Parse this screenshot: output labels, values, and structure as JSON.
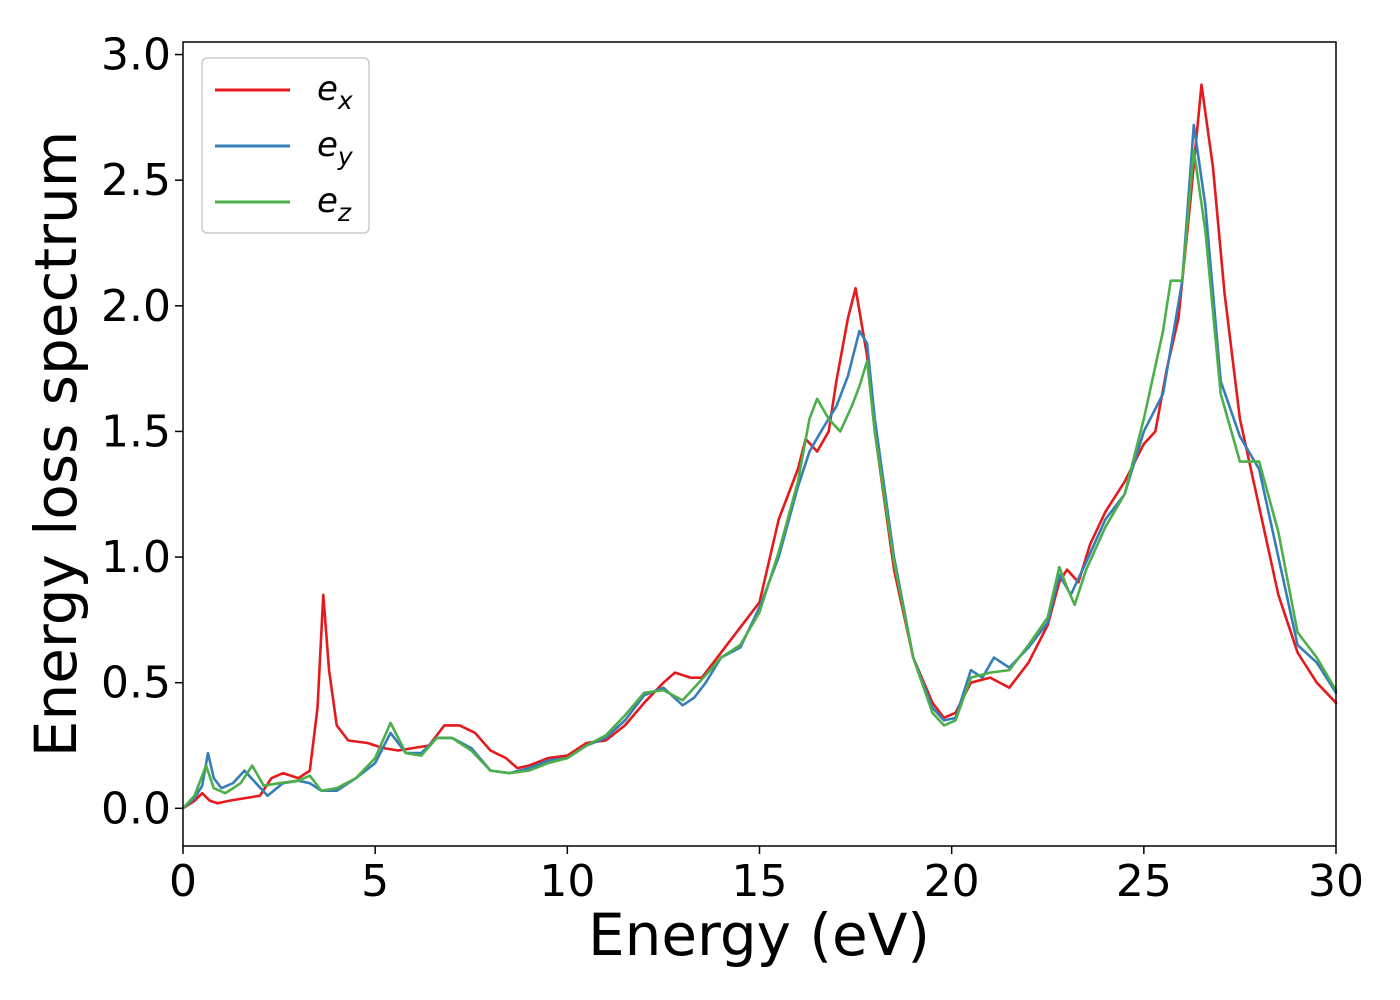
{
  "chart_data": {
    "type": "line",
    "title": "",
    "xlabel": "Energy (eV)",
    "ylabel": "Energy loss spectrum",
    "xlim": [
      0,
      30
    ],
    "ylim": [
      -0.15,
      3.05
    ],
    "xticks": [
      0,
      5,
      10,
      15,
      20,
      25,
      30
    ],
    "xtick_labels": [
      "0",
      "5",
      "10",
      "15",
      "20",
      "25",
      "30"
    ],
    "yticks": [
      0.0,
      0.5,
      1.0,
      1.5,
      2.0,
      2.5,
      3.0
    ],
    "ytick_labels": [
      "0.0",
      "0.5",
      "1.0",
      "1.5",
      "2.0",
      "2.5",
      "3.0"
    ],
    "grid": false,
    "legend_position": "top-left",
    "series": [
      {
        "name": "e_x",
        "label_base": "e",
        "label_sub": "x",
        "color": "#e41a1c",
        "points": [
          [
            0,
            0
          ],
          [
            0.3,
            0.03
          ],
          [
            0.5,
            0.06
          ],
          [
            0.7,
            0.03
          ],
          [
            0.9,
            0.02
          ],
          [
            1.2,
            0.03
          ],
          [
            1.6,
            0.04
          ],
          [
            2.0,
            0.05
          ],
          [
            2.3,
            0.12
          ],
          [
            2.6,
            0.14
          ],
          [
            3.0,
            0.12
          ],
          [
            3.3,
            0.15
          ],
          [
            3.5,
            0.4
          ],
          [
            3.65,
            0.85
          ],
          [
            3.8,
            0.55
          ],
          [
            4.0,
            0.33
          ],
          [
            4.3,
            0.27
          ],
          [
            4.8,
            0.26
          ],
          [
            5.2,
            0.24
          ],
          [
            5.6,
            0.23
          ],
          [
            6.0,
            0.24
          ],
          [
            6.4,
            0.25
          ],
          [
            6.8,
            0.33
          ],
          [
            7.2,
            0.33
          ],
          [
            7.6,
            0.3
          ],
          [
            8.0,
            0.23
          ],
          [
            8.4,
            0.2
          ],
          [
            8.7,
            0.16
          ],
          [
            9.0,
            0.17
          ],
          [
            9.5,
            0.2
          ],
          [
            10.0,
            0.21
          ],
          [
            10.5,
            0.26
          ],
          [
            11.0,
            0.27
          ],
          [
            11.5,
            0.33
          ],
          [
            12.0,
            0.42
          ],
          [
            12.5,
            0.5
          ],
          [
            12.8,
            0.54
          ],
          [
            13.2,
            0.52
          ],
          [
            13.5,
            0.52
          ],
          [
            14.0,
            0.62
          ],
          [
            14.5,
            0.72
          ],
          [
            15.0,
            0.82
          ],
          [
            15.5,
            1.15
          ],
          [
            16.0,
            1.35
          ],
          [
            16.2,
            1.47
          ],
          [
            16.5,
            1.42
          ],
          [
            16.8,
            1.5
          ],
          [
            17.0,
            1.7
          ],
          [
            17.3,
            1.95
          ],
          [
            17.5,
            2.07
          ],
          [
            17.8,
            1.8
          ],
          [
            18.0,
            1.5
          ],
          [
            18.5,
            0.95
          ],
          [
            19.0,
            0.6
          ],
          [
            19.5,
            0.42
          ],
          [
            19.8,
            0.36
          ],
          [
            20.1,
            0.38
          ],
          [
            20.5,
            0.5
          ],
          [
            21.0,
            0.52
          ],
          [
            21.5,
            0.48
          ],
          [
            22.0,
            0.58
          ],
          [
            22.5,
            0.73
          ],
          [
            22.8,
            0.9
          ],
          [
            23.0,
            0.95
          ],
          [
            23.3,
            0.9
          ],
          [
            23.6,
            1.05
          ],
          [
            24.0,
            1.18
          ],
          [
            24.5,
            1.3
          ],
          [
            25.0,
            1.45
          ],
          [
            25.3,
            1.5
          ],
          [
            25.6,
            1.75
          ],
          [
            25.9,
            1.95
          ],
          [
            26.2,
            2.4
          ],
          [
            26.5,
            2.88
          ],
          [
            26.8,
            2.55
          ],
          [
            27.1,
            2.05
          ],
          [
            27.5,
            1.55
          ],
          [
            28.0,
            1.2
          ],
          [
            28.5,
            0.85
          ],
          [
            29.0,
            0.62
          ],
          [
            29.5,
            0.5
          ],
          [
            30.0,
            0.42
          ]
        ]
      },
      {
        "name": "e_y",
        "label_base": "e",
        "label_sub": "y",
        "color": "#377eb8",
        "points": [
          [
            0,
            0
          ],
          [
            0.3,
            0.04
          ],
          [
            0.5,
            0.09
          ],
          [
            0.65,
            0.22
          ],
          [
            0.8,
            0.12
          ],
          [
            1.0,
            0.08
          ],
          [
            1.3,
            0.1
          ],
          [
            1.6,
            0.15
          ],
          [
            1.9,
            0.1
          ],
          [
            2.2,
            0.05
          ],
          [
            2.6,
            0.1
          ],
          [
            3.0,
            0.11
          ],
          [
            3.3,
            0.1
          ],
          [
            3.6,
            0.07
          ],
          [
            4.0,
            0.07
          ],
          [
            4.5,
            0.12
          ],
          [
            5.0,
            0.18
          ],
          [
            5.4,
            0.3
          ],
          [
            5.8,
            0.22
          ],
          [
            6.2,
            0.22
          ],
          [
            6.6,
            0.28
          ],
          [
            7.0,
            0.28
          ],
          [
            7.5,
            0.24
          ],
          [
            8.0,
            0.15
          ],
          [
            8.5,
            0.14
          ],
          [
            9.0,
            0.16
          ],
          [
            9.5,
            0.19
          ],
          [
            10.0,
            0.2
          ],
          [
            10.5,
            0.25
          ],
          [
            11.0,
            0.28
          ],
          [
            11.5,
            0.35
          ],
          [
            12.0,
            0.45
          ],
          [
            12.5,
            0.48
          ],
          [
            13.0,
            0.41
          ],
          [
            13.3,
            0.44
          ],
          [
            13.6,
            0.5
          ],
          [
            14.0,
            0.6
          ],
          [
            14.5,
            0.64
          ],
          [
            15.0,
            0.8
          ],
          [
            15.5,
            1.0
          ],
          [
            16.0,
            1.28
          ],
          [
            16.3,
            1.42
          ],
          [
            16.6,
            1.5
          ],
          [
            17.0,
            1.6
          ],
          [
            17.3,
            1.72
          ],
          [
            17.6,
            1.9
          ],
          [
            17.8,
            1.85
          ],
          [
            18.0,
            1.55
          ],
          [
            18.5,
            1.0
          ],
          [
            19.0,
            0.6
          ],
          [
            19.5,
            0.4
          ],
          [
            19.8,
            0.35
          ],
          [
            20.1,
            0.36
          ],
          [
            20.5,
            0.55
          ],
          [
            20.8,
            0.52
          ],
          [
            21.1,
            0.6
          ],
          [
            21.5,
            0.56
          ],
          [
            22.0,
            0.64
          ],
          [
            22.5,
            0.74
          ],
          [
            22.8,
            0.93
          ],
          [
            23.1,
            0.85
          ],
          [
            23.5,
            0.98
          ],
          [
            24.0,
            1.15
          ],
          [
            24.5,
            1.25
          ],
          [
            25.0,
            1.5
          ],
          [
            25.5,
            1.65
          ],
          [
            26.0,
            2.1
          ],
          [
            26.3,
            2.72
          ],
          [
            26.6,
            2.4
          ],
          [
            27.0,
            1.7
          ],
          [
            27.5,
            1.48
          ],
          [
            28.0,
            1.35
          ],
          [
            28.5,
            1.0
          ],
          [
            29.0,
            0.65
          ],
          [
            29.5,
            0.58
          ],
          [
            30.0,
            0.46
          ]
        ]
      },
      {
        "name": "e_z",
        "label_base": "e",
        "label_sub": "z",
        "color": "#4daf4a",
        "points": [
          [
            0,
            0
          ],
          [
            0.3,
            0.05
          ],
          [
            0.6,
            0.17
          ],
          [
            0.8,
            0.08
          ],
          [
            1.1,
            0.06
          ],
          [
            1.5,
            0.1
          ],
          [
            1.8,
            0.17
          ],
          [
            2.1,
            0.09
          ],
          [
            2.5,
            0.1
          ],
          [
            3.0,
            0.11
          ],
          [
            3.3,
            0.13
          ],
          [
            3.6,
            0.07
          ],
          [
            4.0,
            0.08
          ],
          [
            4.5,
            0.12
          ],
          [
            5.0,
            0.2
          ],
          [
            5.4,
            0.34
          ],
          [
            5.8,
            0.22
          ],
          [
            6.2,
            0.21
          ],
          [
            6.6,
            0.28
          ],
          [
            7.0,
            0.28
          ],
          [
            7.5,
            0.23
          ],
          [
            8.0,
            0.15
          ],
          [
            8.5,
            0.14
          ],
          [
            9.0,
            0.15
          ],
          [
            9.5,
            0.18
          ],
          [
            10.0,
            0.2
          ],
          [
            10.5,
            0.25
          ],
          [
            11.0,
            0.29
          ],
          [
            11.5,
            0.37
          ],
          [
            12.0,
            0.46
          ],
          [
            12.5,
            0.47
          ],
          [
            13.0,
            0.43
          ],
          [
            13.3,
            0.48
          ],
          [
            13.6,
            0.53
          ],
          [
            14.0,
            0.6
          ],
          [
            14.5,
            0.65
          ],
          [
            15.0,
            0.78
          ],
          [
            15.5,
            1.02
          ],
          [
            16.0,
            1.3
          ],
          [
            16.3,
            1.55
          ],
          [
            16.5,
            1.63
          ],
          [
            16.8,
            1.55
          ],
          [
            17.1,
            1.5
          ],
          [
            17.4,
            1.6
          ],
          [
            17.6,
            1.68
          ],
          [
            17.8,
            1.78
          ],
          [
            18.0,
            1.5
          ],
          [
            18.5,
            0.98
          ],
          [
            19.0,
            0.6
          ],
          [
            19.5,
            0.38
          ],
          [
            19.8,
            0.33
          ],
          [
            20.1,
            0.35
          ],
          [
            20.5,
            0.52
          ],
          [
            21.0,
            0.54
          ],
          [
            21.5,
            0.55
          ],
          [
            22.0,
            0.65
          ],
          [
            22.5,
            0.76
          ],
          [
            22.8,
            0.96
          ],
          [
            23.0,
            0.88
          ],
          [
            23.2,
            0.81
          ],
          [
            23.5,
            0.95
          ],
          [
            24.0,
            1.12
          ],
          [
            24.5,
            1.25
          ],
          [
            25.0,
            1.55
          ],
          [
            25.5,
            1.9
          ],
          [
            25.7,
            2.1
          ],
          [
            26.0,
            2.1
          ],
          [
            26.3,
            2.62
          ],
          [
            26.6,
            2.3
          ],
          [
            27.0,
            1.65
          ],
          [
            27.5,
            1.38
          ],
          [
            28.0,
            1.38
          ],
          [
            28.5,
            1.1
          ],
          [
            29.0,
            0.7
          ],
          [
            29.5,
            0.6
          ],
          [
            30.0,
            0.47
          ]
        ]
      }
    ]
  }
}
